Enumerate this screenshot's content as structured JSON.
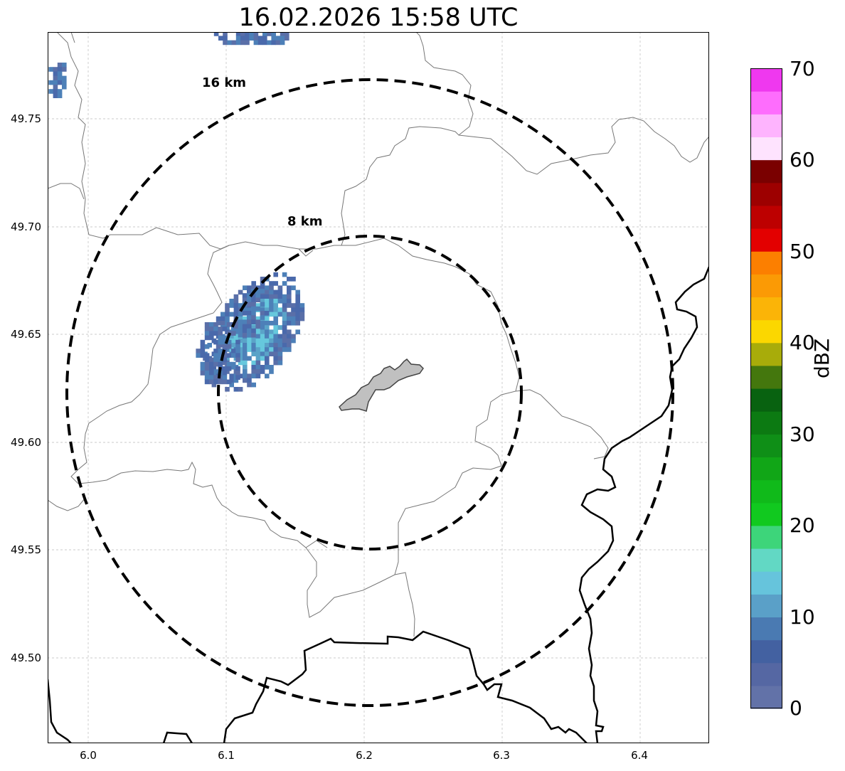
{
  "title": "16.02.2026 15:58 UTC",
  "map": {
    "lon_range": [
      5.97,
      6.45
    ],
    "lat_range": [
      49.46,
      49.79
    ],
    "x_ticks": [
      "6.0",
      "6.1",
      "6.2",
      "6.3",
      "6.4"
    ],
    "y_ticks": [
      "49.75",
      "49.70",
      "49.65",
      "49.60",
      "49.55",
      "49.50"
    ],
    "gridlines": true,
    "range_rings": [
      {
        "label": "8 km"
      },
      {
        "label": "16 km"
      }
    ]
  },
  "colorbar": {
    "label": "dBZ",
    "range": [
      0,
      70
    ],
    "ticks": [
      "0",
      "10",
      "20",
      "30",
      "40",
      "50",
      "60",
      "70"
    ],
    "colors": [
      "#6272a8",
      "#5567a3",
      "#4361a1",
      "#4a7ab2",
      "#5aa0c8",
      "#66c4dc",
      "#62d8c4",
      "#3dd57a",
      "#11c91f",
      "#10ba1a",
      "#11a617",
      "#0f8f17",
      "#0c7a12",
      "#086210",
      "#44770d",
      "#a8ac0a",
      "#fbd700",
      "#fbb407",
      "#fb9a05",
      "#fc7f00",
      "#e30000",
      "#bd0000",
      "#9d0000",
      "#7a0000",
      "#fee3fe",
      "#feb4fe",
      "#fe6dfd",
      "#ef38ef"
    ]
  },
  "reflectivity": {
    "unit": "dBZ",
    "echo_colors": [
      "#5a6fa8",
      "#4a69ab",
      "#4d80b8",
      "#5aa3c8",
      "#66c8dd",
      "#62d8c4"
    ]
  }
}
